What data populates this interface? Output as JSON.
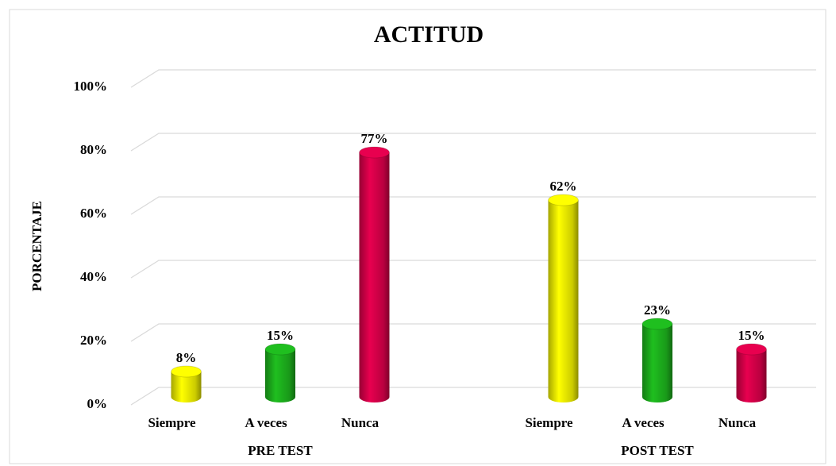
{
  "chart_data": {
    "type": "bar",
    "title": "ACTITUD",
    "y_label": "PORCENTAJE",
    "categories": [
      "PRE TEST",
      "POST TEST"
    ],
    "series": [
      {
        "name": "Siempre",
        "color": "#ffff00",
        "values": [
          8,
          62
        ],
        "value_labels": [
          "8%",
          "62%"
        ]
      },
      {
        "name": "A veces",
        "color": "#1fbf1f",
        "values": [
          15,
          23
        ],
        "value_labels": [
          "15%",
          "23%"
        ]
      },
      {
        "name": "Nunca",
        "color": "#e8004f",
        "values": [
          77,
          15
        ],
        "value_labels": [
          "77%",
          "15%"
        ]
      }
    ],
    "ylim": [
      0,
      100
    ],
    "yticks": [
      {
        "value": 0,
        "label": "0%"
      },
      {
        "value": 20,
        "label": "20%"
      },
      {
        "value": 40,
        "label": "40%"
      },
      {
        "value": 60,
        "label": "60%"
      },
      {
        "value": 80,
        "label": "80%"
      },
      {
        "value": 100,
        "label": "100%"
      }
    ],
    "grid": true
  }
}
